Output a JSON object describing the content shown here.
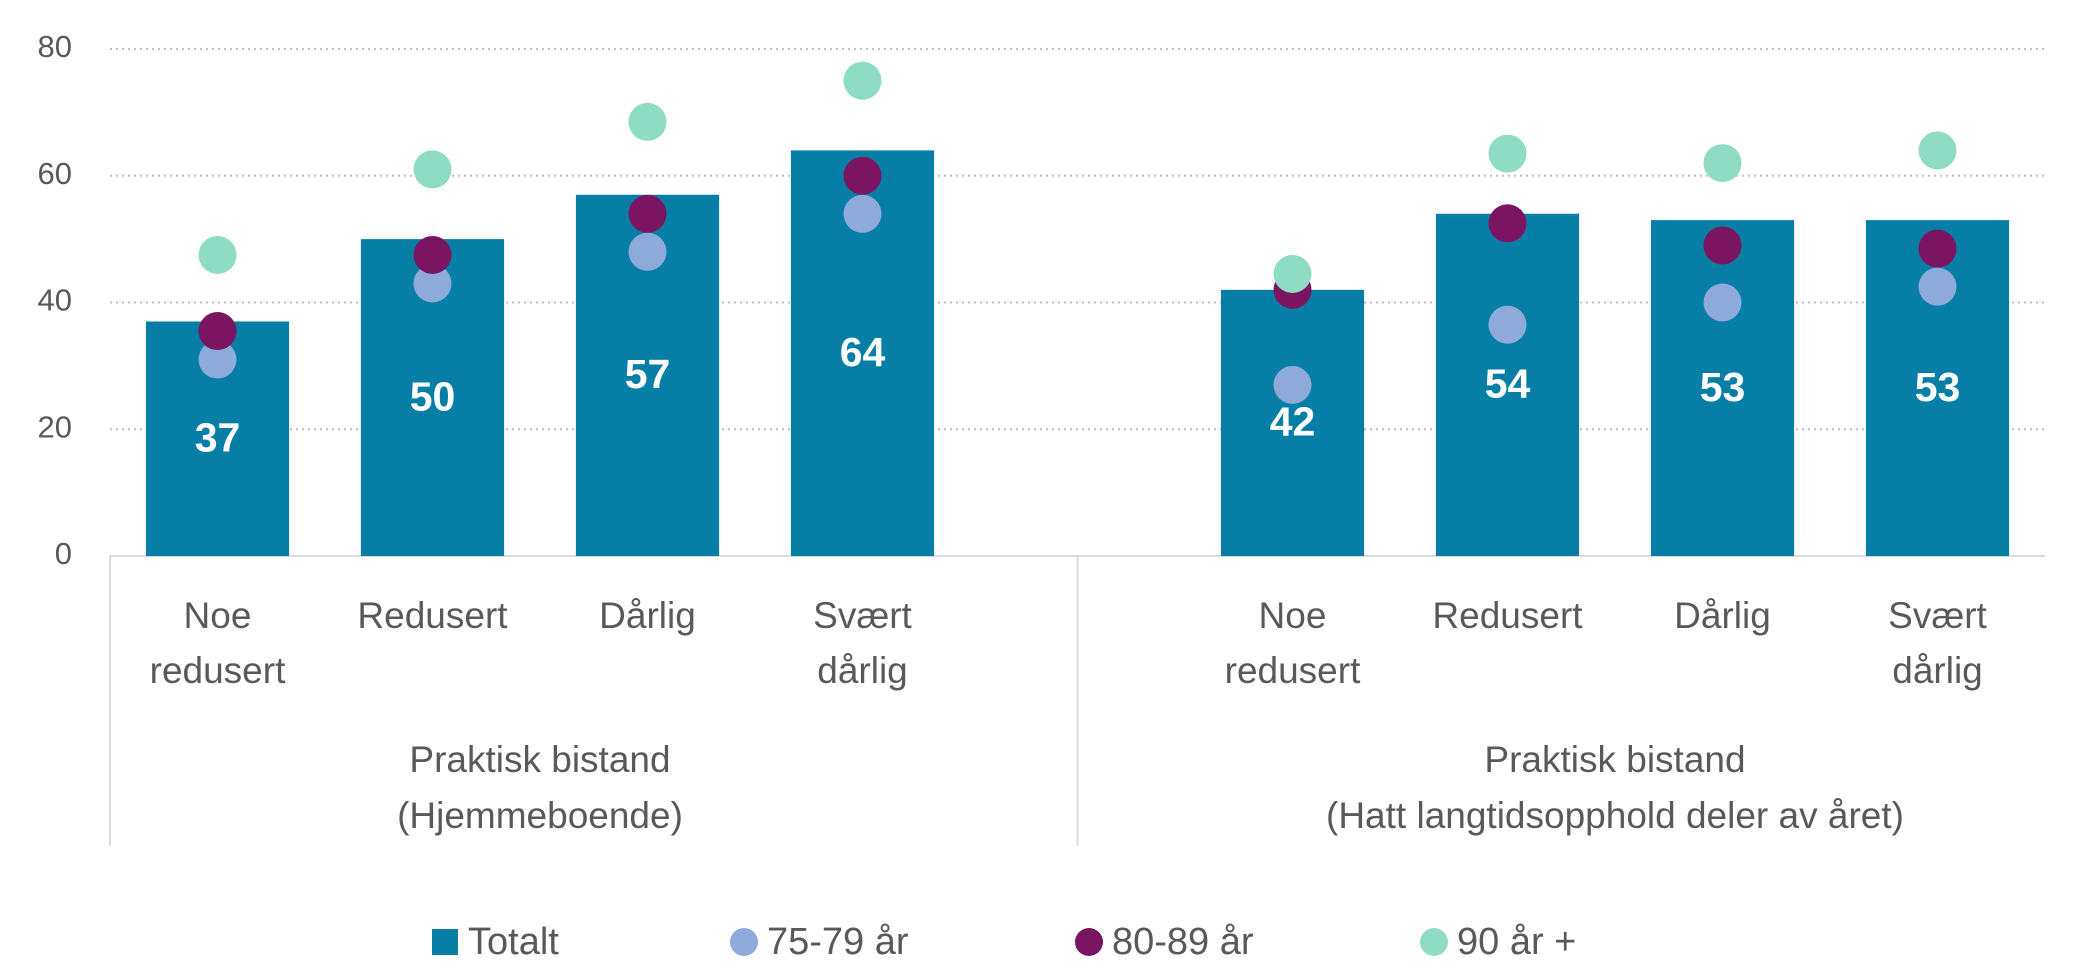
{
  "chart_data": {
    "type": "bar",
    "categories": [
      "Noe redusert",
      "Redusert",
      "Dårlig",
      "Svært dårlig",
      null,
      "Noe redusert",
      "Redusert",
      "Dårlig",
      "Svært dårlig"
    ],
    "groups": [
      [
        "Praktisk bistand",
        "(Hjemmeboende)"
      ],
      [
        "Praktisk bistand",
        "(Hatt langtidsopphold deler av året)"
      ]
    ],
    "series": [
      {
        "name": "Totalt",
        "kind": "bar",
        "color": "#067ea6",
        "values": [
          37,
          50,
          57,
          64,
          null,
          42,
          54,
          53,
          53
        ]
      },
      {
        "name": "75-79 år",
        "kind": "dot",
        "color": "#8eaadb",
        "values": [
          31,
          43,
          48,
          54,
          null,
          27,
          36.5,
          40,
          42.5
        ]
      },
      {
        "name": "80-89 år",
        "kind": "dot",
        "color": "#7b1461",
        "values": [
          35.5,
          47.5,
          54,
          60,
          null,
          42,
          52.5,
          49,
          48.5
        ]
      },
      {
        "name": "90 år +",
        "kind": "dot",
        "color": "#8fdcc4",
        "values": [
          47.5,
          61,
          68.5,
          75,
          null,
          44.5,
          63.5,
          62,
          64
        ]
      }
    ],
    "ylim": [
      0,
      80
    ],
    "yticks": [
      0,
      20,
      40,
      60,
      80
    ],
    "grid": true,
    "legend": "bottom"
  }
}
